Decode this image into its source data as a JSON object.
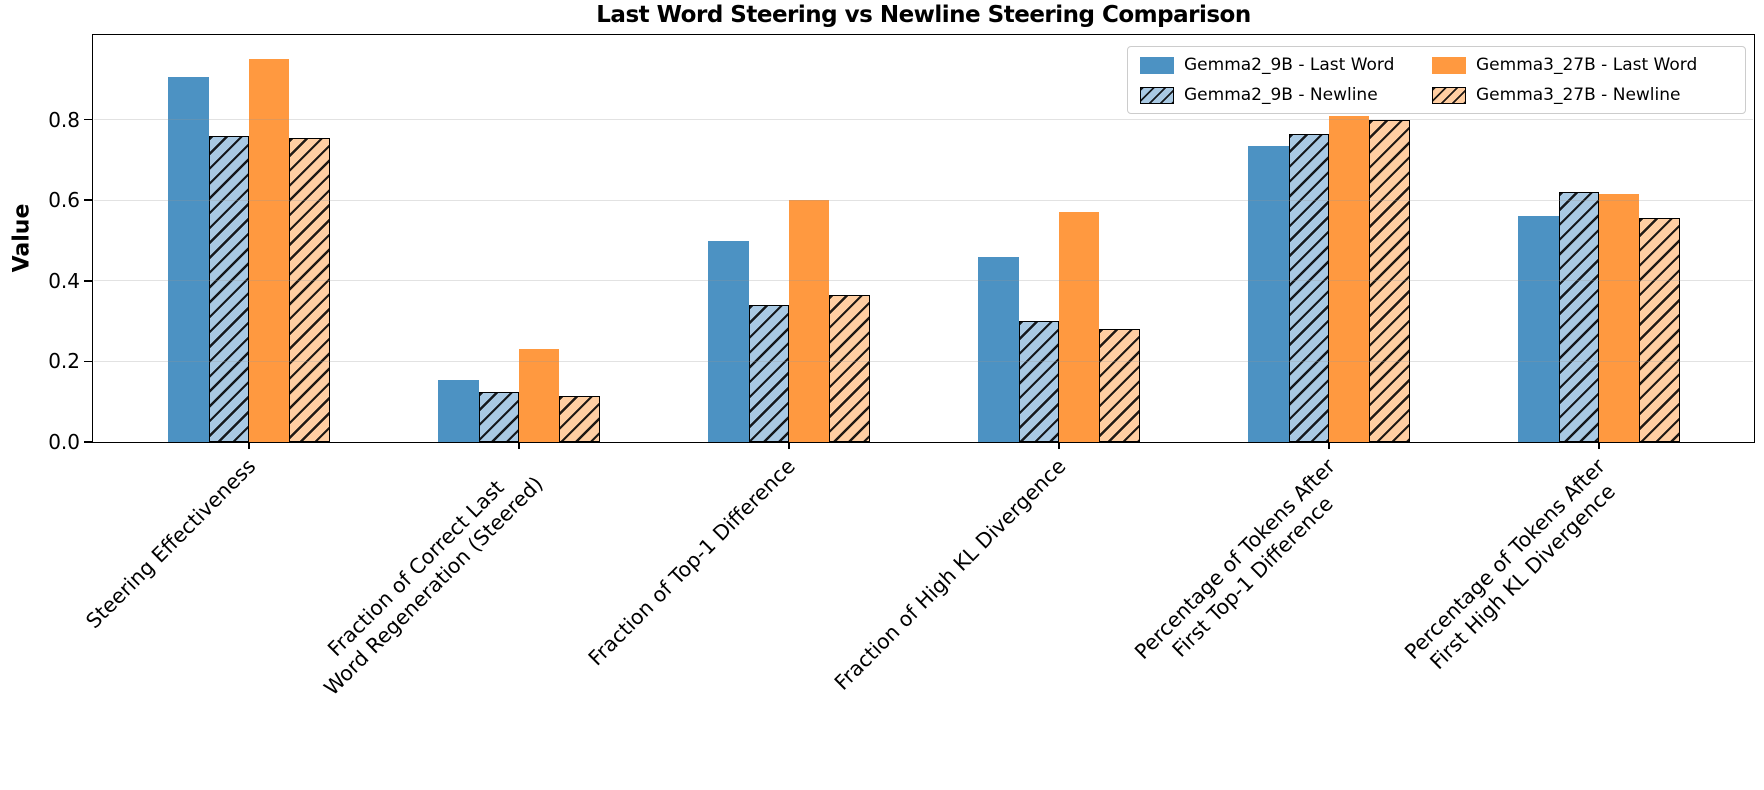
{
  "chart_data": {
    "type": "bar",
    "title": "Last Word Steering vs Newline Steering Comparison",
    "ylabel": "Value",
    "xlabel": "",
    "categories": [
      "Steering Effectiveness",
      "Fraction of Correct Last\nWord Regeneration (Steered)",
      "Fraction of Top-1 Difference",
      "Fraction of High KL Divergence",
      "Percentage of Tokens After\nFirst Top-1 Difference",
      "Percentage of Tokens After\nFirst High KL Divergence"
    ],
    "series": [
      {
        "name": "Gemma2_9B - Last Word",
        "color": "#4C92C3",
        "hatch": false,
        "values": [
          0.905,
          0.155,
          0.5,
          0.46,
          0.735,
          0.56
        ]
      },
      {
        "name": "Gemma2_9B - Newline",
        "color": "#A9C9E3",
        "hatch": true,
        "values": [
          0.76,
          0.125,
          0.34,
          0.3,
          0.765,
          0.62
        ]
      },
      {
        "name": "Gemma3_27B - Last Word",
        "color": "#FF9940",
        "hatch": false,
        "values": [
          0.95,
          0.23,
          0.6,
          0.57,
          0.81,
          0.615
        ]
      },
      {
        "name": "Gemma3_27B - Newline",
        "color": "#FFCEA2",
        "hatch": true,
        "values": [
          0.755,
          0.115,
          0.365,
          0.28,
          0.8,
          0.555
        ]
      }
    ],
    "yticks": [
      "0.0",
      "0.2",
      "0.4",
      "0.6",
      "0.8"
    ],
    "ytick_values": [
      0.0,
      0.2,
      0.4,
      0.6,
      0.8
    ],
    "ylim": [
      0,
      1.01
    ],
    "grid": true,
    "hatch_style": "//",
    "legend_position": "upper right",
    "legend_columns": 2
  }
}
